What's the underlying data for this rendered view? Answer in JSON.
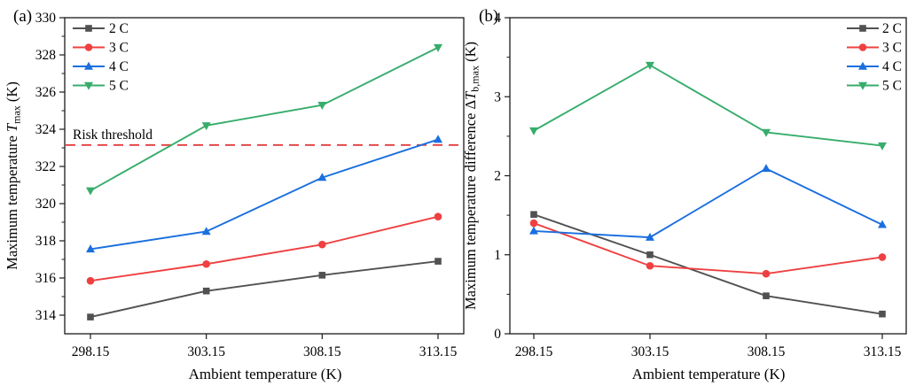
{
  "chart_data": [
    {
      "type": "line",
      "tag": "(a)",
      "xlabel": "Ambient temperature (K)",
      "ylabel_parts": {
        "pre": "Maximum temperature ",
        "it": "T",
        "sub": "max",
        "post": " (K)"
      },
      "x": [
        298.15,
        303.15,
        308.15,
        313.15
      ],
      "x_tick_labels": [
        "298.15",
        "303.15",
        "308.15",
        "313.15"
      ],
      "ylim": [
        313,
        330
      ],
      "yticks": [
        314,
        316,
        318,
        320,
        322,
        324,
        326,
        328,
        330
      ],
      "y_minor_step": 1,
      "legend_position": "top-left",
      "grid": "off",
      "threshold": {
        "label": "Risk threshold",
        "value": 323.15,
        "color": "#e23b3c",
        "style": "dashed"
      },
      "series": [
        {
          "name": "2 C",
          "marker": "square",
          "color": "#515151",
          "values": [
            313.9,
            315.3,
            316.15,
            316.9
          ]
        },
        {
          "name": "3 C",
          "marker": "circle",
          "color": "#ef4041",
          "values": [
            315.85,
            316.75,
            317.8,
            319.3
          ]
        },
        {
          "name": "4 C",
          "marker": "triangle-up",
          "color": "#1a6fdf",
          "values": [
            317.55,
            318.5,
            321.4,
            323.45
          ]
        },
        {
          "name": "5 C",
          "marker": "triangle-down",
          "color": "#37ad6b",
          "values": [
            320.7,
            324.2,
            325.3,
            328.4
          ]
        }
      ]
    },
    {
      "type": "line",
      "tag": "(b)",
      "xlabel": "Ambient temperature (K)",
      "ylabel_parts": {
        "pre": "Maximum temperature difference Δ",
        "it": "T",
        "sub": "b,max",
        "post": " (K)"
      },
      "x": [
        298.15,
        303.15,
        308.15,
        313.15
      ],
      "x_tick_labels": [
        "298.15",
        "303.15",
        "308.15",
        "313.15"
      ],
      "ylim": [
        0,
        4
      ],
      "yticks": [
        0,
        1,
        2,
        3,
        4
      ],
      "y_minor_step": 0.5,
      "legend_position": "top-right",
      "grid": "off",
      "series": [
        {
          "name": "2 C",
          "marker": "square",
          "color": "#515151",
          "values": [
            1.51,
            1.0,
            0.48,
            0.25
          ]
        },
        {
          "name": "3 C",
          "marker": "circle",
          "color": "#ef4041",
          "values": [
            1.4,
            0.86,
            0.76,
            0.97
          ]
        },
        {
          "name": "4 C",
          "marker": "triangle-up",
          "color": "#1a6fdf",
          "values": [
            1.3,
            1.22,
            2.09,
            1.38
          ]
        },
        {
          "name": "5 C",
          "marker": "triangle-down",
          "color": "#37ad6b",
          "values": [
            2.57,
            3.4,
            2.55,
            2.38
          ]
        }
      ]
    }
  ]
}
